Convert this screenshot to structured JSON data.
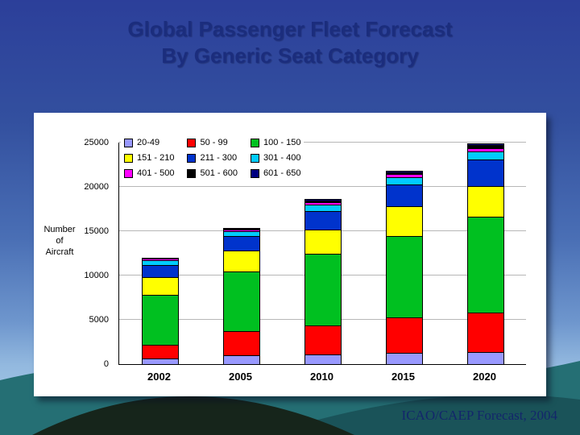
{
  "slide": {
    "title_line1": "Global Passenger Fleet Forecast",
    "title_line2": "By Generic Seat Category",
    "credit": "ICAO/CAEP Forecast, 2004"
  },
  "chart_data": {
    "type": "bar",
    "stacked": true,
    "title": "",
    "xlabel": "",
    "ylabel_lines": [
      "Number",
      "of",
      "Aircraft"
    ],
    "ylim": [
      0,
      25000
    ],
    "yticks": [
      0,
      5000,
      10000,
      15000,
      20000,
      25000
    ],
    "legend_position": "top-left-inside",
    "grid": true,
    "categories": [
      "2002",
      "2005",
      "2010",
      "2015",
      "2020"
    ],
    "series": [
      {
        "name": "20-49",
        "color": "#9999FF",
        "values": [
          600,
          1000,
          1100,
          1300,
          1400
        ]
      },
      {
        "name": "50 - 99",
        "color": "#FF0000",
        "values": [
          1600,
          2700,
          3300,
          4000,
          4400
        ]
      },
      {
        "name": "100 - 150",
        "color": "#00C020",
        "values": [
          5600,
          6800,
          8100,
          9200,
          10800
        ]
      },
      {
        "name": "151 - 210",
        "color": "#FFFF00",
        "values": [
          2000,
          2300,
          2700,
          3300,
          3500
        ]
      },
      {
        "name": "211 - 300",
        "color": "#0033CC",
        "values": [
          1400,
          1700,
          2100,
          2500,
          3000
        ]
      },
      {
        "name": "301 - 400",
        "color": "#00CCFF",
        "values": [
          500,
          500,
          700,
          800,
          900
        ]
      },
      {
        "name": "401 - 500",
        "color": "#FF00FF",
        "values": [
          200,
          200,
          300,
          400,
          400
        ]
      },
      {
        "name": "501 - 600",
        "color": "#000000",
        "values": [
          100,
          100,
          150,
          150,
          300
        ]
      },
      {
        "name": "601 - 650",
        "color": "#000080",
        "values": [
          0,
          100,
          150,
          150,
          200
        ]
      }
    ]
  }
}
